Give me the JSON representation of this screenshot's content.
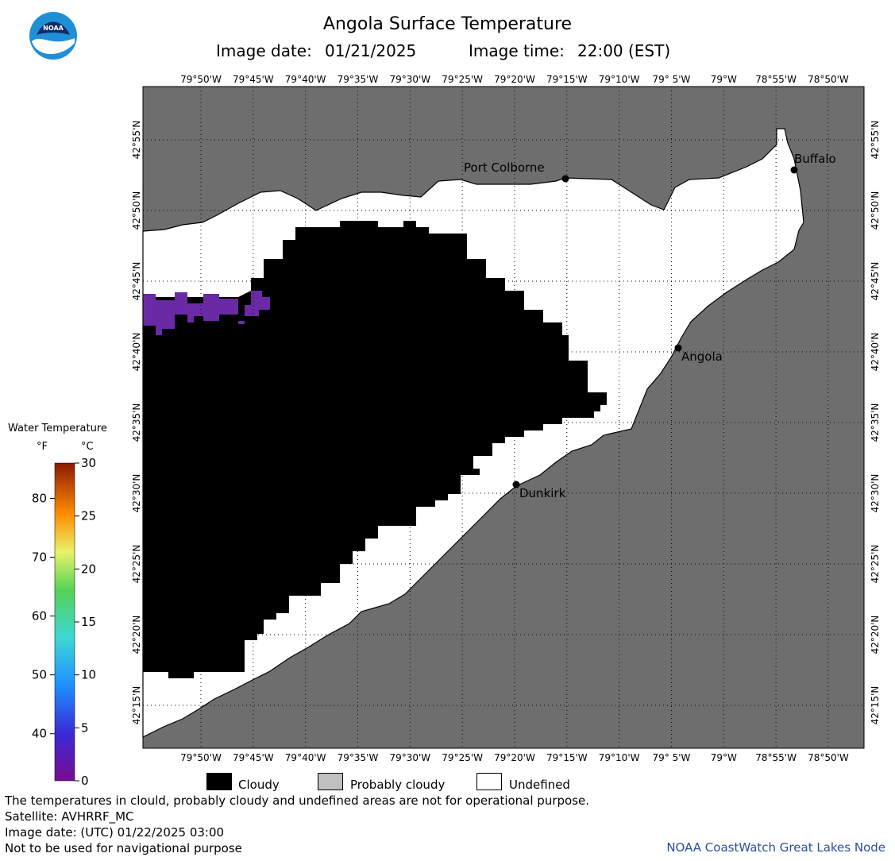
{
  "title": "Angola Surface Temperature",
  "subtitle": {
    "date_label": "Image date:",
    "date": "01/21/2025",
    "time_label": "Image time:",
    "time": "22:00 (EST)"
  },
  "logo": {
    "icon": "noaa-logo-icon",
    "text": "NOAA"
  },
  "map": {
    "longitude_ticks": [
      "79°50'W",
      "79°45'W",
      "79°40'W",
      "79°35'W",
      "79°30'W",
      "79°25'W",
      "79°20'W",
      "79°15'W",
      "79°10'W",
      "79° 5'W",
      "79°W",
      "78°55'W",
      "78°50'W"
    ],
    "latitude_ticks": [
      "42°55'N",
      "42°50'N",
      "42°45'N",
      "42°40'N",
      "42°35'N",
      "42°30'N",
      "42°25'N",
      "42°20'N",
      "42°15'N"
    ],
    "cities": [
      {
        "name": "Port Colborne"
      },
      {
        "name": "Buffalo"
      },
      {
        "name": "Angola"
      },
      {
        "name": "Dunkirk"
      }
    ],
    "colors": {
      "land": "#6e6e6e",
      "undefined": "#ffffff",
      "cloudy": "#000000",
      "water_sample": "#6b2aa5"
    }
  },
  "color_scale": {
    "title": "Water Temperature",
    "unit_f": "°F",
    "unit_c": "°C",
    "f_ticks": [
      "80",
      "70",
      "60",
      "50",
      "40"
    ],
    "c_ticks": [
      "30",
      "25",
      "20",
      "15",
      "10",
      "5",
      "0"
    ]
  },
  "legend": [
    {
      "label": "Cloudy",
      "color": "#000000"
    },
    {
      "label": "Probably cloudy",
      "color": "#c0c0c0"
    },
    {
      "label": "Undefined",
      "color": "#ffffff"
    }
  ],
  "footer": {
    "disclaimer": "The temperatures in clould, probably cloudy and undefined areas are not for operational purpose.",
    "satellite": "Satellite: AVHRRF_MC",
    "utc_date": "Image date: (UTC) 01/22/2025  03:00",
    "nav_warning": "Not to be used for navigational purpose",
    "credit": "NOAA CoastWatch Great Lakes Node"
  }
}
